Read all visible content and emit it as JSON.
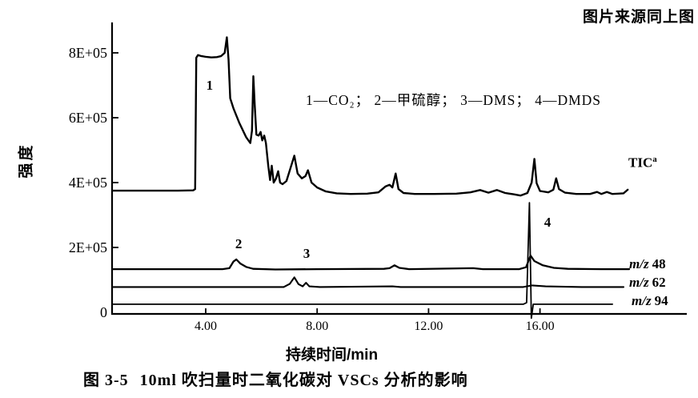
{
  "page": {
    "source_note": "图片来源同上图",
    "caption": {
      "number": "图 3-5",
      "title": "10ml 吹扫量时二氧化碳对 VSCs 分析的影响"
    }
  },
  "chart_data": {
    "type": "line",
    "title": "",
    "xlabel": "持续时间/min",
    "ylabel": "强度",
    "xlim": [
      0.68,
      21.3
    ],
    "ylim": [
      0,
      900000
    ],
    "grid": false,
    "x_ticks": [
      4,
      8,
      12,
      16
    ],
    "x_tick_labels": [
      "4.00",
      "8.00",
      "12.00",
      "16.00"
    ],
    "y_ticks": [
      0,
      200000,
      400000,
      600000,
      800000
    ],
    "y_tick_labels": [
      "0",
      "2E+05",
      "4E+05",
      "6E+05",
      "8E+05"
    ],
    "legend_note": "1—CO₂； 2—甲硫醇； 3—DMS； 4—DMDS",
    "peak_annotations": [
      {
        "label": "1",
        "compound": "CO₂",
        "x": 4.14,
        "y": 686000
      },
      {
        "label": "2",
        "compound": "甲硫醇",
        "x": 5.18,
        "y": 198000
      },
      {
        "label": "3",
        "compound": "DMS",
        "x": 7.62,
        "y": 168000
      },
      {
        "label": "4",
        "compound": "DMDS",
        "x": 16.27,
        "y": 264000
      }
    ],
    "series": [
      {
        "id": "tic",
        "name": "TIC",
        "label": {
          "text": "TIC",
          "sup": "a"
        },
        "points": [
          [
            0.68,
            375000
          ],
          [
            3.0,
            375000
          ],
          [
            3.55,
            376000
          ],
          [
            3.62,
            380000
          ],
          [
            3.66,
            785000
          ],
          [
            3.72,
            793000
          ],
          [
            3.85,
            790000
          ],
          [
            4.0,
            788000
          ],
          [
            4.2,
            786000
          ],
          [
            4.4,
            787000
          ],
          [
            4.55,
            790000
          ],
          [
            4.68,
            800000
          ],
          [
            4.76,
            848000
          ],
          [
            4.82,
            780000
          ],
          [
            4.88,
            660000
          ],
          [
            5.0,
            628000
          ],
          [
            5.2,
            585000
          ],
          [
            5.45,
            540000
          ],
          [
            5.6,
            522000
          ],
          [
            5.66,
            560000
          ],
          [
            5.71,
            728000
          ],
          [
            5.76,
            640000
          ],
          [
            5.82,
            548000
          ],
          [
            5.9,
            545000
          ],
          [
            5.97,
            556000
          ],
          [
            6.03,
            530000
          ],
          [
            6.1,
            545000
          ],
          [
            6.16,
            522000
          ],
          [
            6.24,
            455000
          ],
          [
            6.31,
            408000
          ],
          [
            6.37,
            452000
          ],
          [
            6.44,
            400000
          ],
          [
            6.52,
            412000
          ],
          [
            6.6,
            435000
          ],
          [
            6.67,
            400000
          ],
          [
            6.76,
            395000
          ],
          [
            6.9,
            405000
          ],
          [
            7.08,
            455000
          ],
          [
            7.18,
            483000
          ],
          [
            7.3,
            428000
          ],
          [
            7.45,
            413000
          ],
          [
            7.58,
            420000
          ],
          [
            7.67,
            438000
          ],
          [
            7.8,
            400000
          ],
          [
            8.0,
            385000
          ],
          [
            8.3,
            373000
          ],
          [
            8.7,
            367000
          ],
          [
            9.2,
            365000
          ],
          [
            9.8,
            366000
          ],
          [
            10.2,
            370000
          ],
          [
            10.45,
            388000
          ],
          [
            10.6,
            393000
          ],
          [
            10.7,
            385000
          ],
          [
            10.82,
            428000
          ],
          [
            10.92,
            380000
          ],
          [
            11.1,
            368000
          ],
          [
            11.5,
            365000
          ],
          [
            12.2,
            365000
          ],
          [
            13.0,
            366000
          ],
          [
            13.5,
            370000
          ],
          [
            13.85,
            377000
          ],
          [
            14.15,
            369000
          ],
          [
            14.45,
            377000
          ],
          [
            14.75,
            368000
          ],
          [
            15.05,
            364000
          ],
          [
            15.3,
            360000
          ],
          [
            15.55,
            368000
          ],
          [
            15.7,
            400000
          ],
          [
            15.8,
            473000
          ],
          [
            15.88,
            398000
          ],
          [
            16.0,
            374000
          ],
          [
            16.3,
            370000
          ],
          [
            16.48,
            378000
          ],
          [
            16.58,
            413000
          ],
          [
            16.68,
            380000
          ],
          [
            16.9,
            369000
          ],
          [
            17.3,
            365000
          ],
          [
            17.8,
            365000
          ],
          [
            18.05,
            371000
          ],
          [
            18.2,
            365000
          ],
          [
            18.4,
            371000
          ],
          [
            18.6,
            365000
          ],
          [
            19.0,
            367000
          ],
          [
            19.15,
            378000
          ]
        ]
      },
      {
        "id": "mz48",
        "name": "m/z 48",
        "label": {
          "prefix": "m/z",
          "value": "48"
        },
        "points": [
          [
            0.68,
            133000
          ],
          [
            2.5,
            133000
          ],
          [
            4.6,
            133000
          ],
          [
            4.85,
            136000
          ],
          [
            5.0,
            157000
          ],
          [
            5.1,
            163000
          ],
          [
            5.25,
            150000
          ],
          [
            5.45,
            140000
          ],
          [
            5.7,
            134000
          ],
          [
            6.5,
            132000
          ],
          [
            8.0,
            133000
          ],
          [
            10.4,
            134000
          ],
          [
            10.6,
            136000
          ],
          [
            10.78,
            145000
          ],
          [
            10.95,
            137000
          ],
          [
            11.3,
            133000
          ],
          [
            13.6,
            136000
          ],
          [
            13.95,
            133000
          ],
          [
            15.25,
            133000
          ],
          [
            15.5,
            139000
          ],
          [
            15.66,
            175000
          ],
          [
            15.8,
            158000
          ],
          [
            16.1,
            145000
          ],
          [
            16.5,
            137000
          ],
          [
            17.0,
            134000
          ],
          [
            18.2,
            133000
          ],
          [
            19.2,
            133000
          ]
        ]
      },
      {
        "id": "mz62",
        "name": "m/z 62",
        "label": {
          "prefix": "m/z",
          "value": "62"
        },
        "points": [
          [
            0.68,
            78000
          ],
          [
            3.0,
            78000
          ],
          [
            6.8,
            78000
          ],
          [
            7.02,
            88000
          ],
          [
            7.18,
            108000
          ],
          [
            7.33,
            87000
          ],
          [
            7.48,
            80000
          ],
          [
            7.6,
            91000
          ],
          [
            7.72,
            80000
          ],
          [
            8.1,
            78000
          ],
          [
            10.7,
            80000
          ],
          [
            11.0,
            78000
          ],
          [
            13.0,
            78000
          ],
          [
            15.4,
            78000
          ],
          [
            15.72,
            83000
          ],
          [
            16.2,
            80000
          ],
          [
            17.5,
            78000
          ],
          [
            19.0,
            78000
          ]
        ]
      },
      {
        "id": "mz94",
        "name": "m/z 94",
        "label": {
          "prefix": "m/z",
          "value": "94"
        },
        "points": [
          [
            0.68,
            25000
          ],
          [
            5.0,
            25000
          ],
          [
            10.0,
            25000
          ],
          [
            15.4,
            25000
          ],
          [
            15.52,
            30000
          ],
          [
            15.62,
            338000
          ],
          [
            15.69,
            -18000
          ],
          [
            15.76,
            25000
          ],
          [
            16.5,
            25000
          ],
          [
            18.6,
            25000
          ]
        ]
      }
    ]
  }
}
